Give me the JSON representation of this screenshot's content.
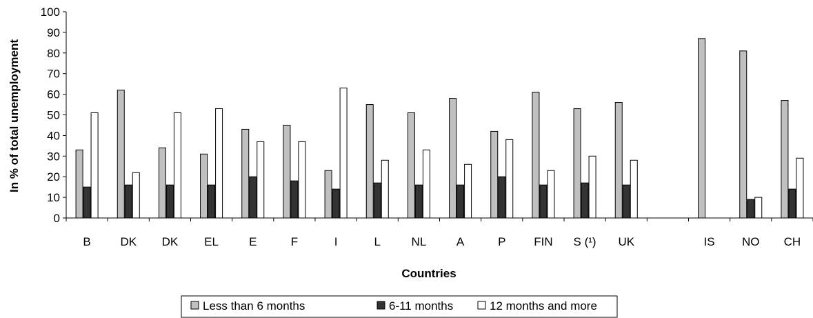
{
  "chart_data": {
    "type": "bar",
    "xlabel": "Countries",
    "ylabel": "In % of total unemployment",
    "ylim": [
      0,
      100
    ],
    "yticks": [
      0,
      10,
      20,
      30,
      40,
      50,
      60,
      70,
      80,
      90,
      100
    ],
    "grid": false,
    "legend_position": "bottom",
    "categories": [
      "B",
      "DK",
      "DK",
      "EL",
      "E",
      "F",
      "I",
      "L",
      "NL",
      "A",
      "P",
      "FIN",
      "S (¹)",
      "UK",
      "",
      "IS",
      "NO",
      "CH"
    ],
    "series": [
      {
        "name": "Less than 6 months",
        "color": "#c0c0c0",
        "values": [
          33,
          62,
          34,
          31,
          43,
          45,
          23,
          55,
          51,
          58,
          42,
          61,
          53,
          56,
          null,
          87,
          81,
          57
        ]
      },
      {
        "name": "6-11 months",
        "color": "#333333",
        "values": [
          15,
          16,
          16,
          16,
          20,
          18,
          14,
          17,
          16,
          16,
          20,
          16,
          17,
          16,
          null,
          0,
          9,
          14
        ]
      },
      {
        "name": "12 months and more",
        "color": "#ffffff",
        "values": [
          51,
          22,
          51,
          53,
          37,
          37,
          63,
          28,
          33,
          26,
          38,
          23,
          30,
          28,
          null,
          0,
          10,
          29
        ]
      }
    ]
  }
}
